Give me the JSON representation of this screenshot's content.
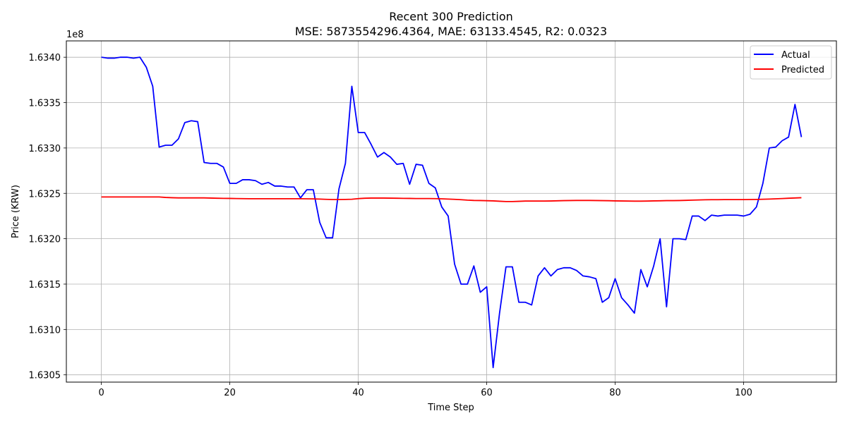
{
  "chart_data": {
    "type": "line",
    "title": "Recent 300 Prediction",
    "subtitle": "MSE: 5873554296.4364, MAE: 63133.4545, R2: 0.0323",
    "xlabel": "Time Step",
    "ylabel": "Price (KRW)",
    "y_offset_label": "1e8",
    "xlim": [
      -5.45,
      114.45
    ],
    "ylim": [
      163042000,
      163418000
    ],
    "x_ticks": [
      0,
      20,
      40,
      60,
      80,
      100
    ],
    "y_ticks": [
      1.6305,
      1.631,
      1.6315,
      1.632,
      1.6325,
      1.633,
      1.6335,
      1.634
    ],
    "y_tick_labels": [
      "1.6305",
      "1.6310",
      "1.6315",
      "1.6320",
      "1.6325",
      "1.6330",
      "1.6335",
      "1.6340"
    ],
    "grid": true,
    "legend_position": "top-right",
    "x": [
      0,
      1,
      2,
      3,
      4,
      5,
      6,
      7,
      8,
      9,
      10,
      11,
      12,
      13,
      14,
      15,
      16,
      17,
      18,
      19,
      20,
      21,
      22,
      23,
      24,
      25,
      26,
      27,
      28,
      29,
      30,
      31,
      32,
      33,
      34,
      35,
      36,
      37,
      38,
      39,
      40,
      41,
      42,
      43,
      44,
      45,
      46,
      47,
      48,
      49,
      50,
      51,
      52,
      53,
      54,
      55,
      56,
      57,
      58,
      59,
      60,
      61,
      62,
      63,
      64,
      65,
      66,
      67,
      68,
      69,
      70,
      71,
      72,
      73,
      74,
      75,
      76,
      77,
      78,
      79,
      80,
      81,
      82,
      83,
      84,
      85,
      86,
      87,
      88,
      89,
      90,
      91,
      92,
      93,
      94,
      95,
      96,
      97,
      98,
      99,
      100,
      101,
      102,
      103,
      104,
      105,
      106,
      107,
      108,
      109
    ],
    "series": [
      {
        "name": "Actual",
        "color": "#0000ff",
        "values": [
          163400000,
          163399000,
          163399000,
          163400000,
          163400000,
          163399000,
          163400000,
          163389000,
          163368000,
          163301000,
          163303000,
          163303000,
          163310000,
          163328000,
          163330000,
          163329000,
          163284000,
          163283000,
          163283000,
          163279000,
          163261000,
          163261000,
          163265000,
          163265000,
          163264000,
          163260000,
          163262000,
          163258000,
          163258000,
          163257000,
          163257000,
          163245000,
          163254000,
          163254000,
          163218000,
          163201000,
          163201000,
          163255000,
          163283000,
          163368000,
          163317000,
          163317000,
          163304000,
          163290000,
          163295000,
          163290000,
          163282000,
          163283000,
          163260000,
          163282000,
          163281000,
          163261000,
          163256000,
          163235000,
          163225000,
          163172000,
          163150000,
          163150000,
          163170000,
          163141000,
          163147000,
          163058000,
          163118000,
          163169000,
          163169000,
          163130000,
          163130000,
          163127000,
          163159000,
          163168000,
          163159000,
          163166000,
          163168000,
          163168000,
          163165000,
          163159000,
          163158000,
          163156000,
          163130000,
          163135000,
          163156000,
          163135000,
          163127000,
          163118000,
          163166000,
          163147000,
          163170000,
          163200000,
          163125000,
          163200000,
          163200000,
          163199000,
          163225000,
          163225000,
          163220000,
          163226000,
          163225000,
          163226000,
          163226000,
          163226000,
          163225000,
          163227000,
          163235000,
          163261000,
          163300000,
          163301000,
          163308000,
          163312000,
          163348000,
          163312000
        ]
      },
      {
        "name": "Predicted",
        "color": "#ff0000",
        "values": [
          163246000,
          163246000,
          163246000,
          163246000,
          163246000,
          163246000,
          163246000,
          163246000,
          163246000,
          163246000,
          163245500,
          163245200,
          163245000,
          163245000,
          163245000,
          163245000,
          163245000,
          163244800,
          163244600,
          163244500,
          163244400,
          163244300,
          163244200,
          163244100,
          163244100,
          163244100,
          163244100,
          163244100,
          163244100,
          163244100,
          163244100,
          163244100,
          163244000,
          163243900,
          163243700,
          163243400,
          163243200,
          163243200,
          163243300,
          163243500,
          163244200,
          163244600,
          163244800,
          163244800,
          163244800,
          163244700,
          163244600,
          163244500,
          163244400,
          163244300,
          163244300,
          163244300,
          163244200,
          163244000,
          163243700,
          163243400,
          163243000,
          163242500,
          163242200,
          163242100,
          163241900,
          163241700,
          163241300,
          163241000,
          163241000,
          163241200,
          163241500,
          163241500,
          163241500,
          163241500,
          163241600,
          163241800,
          163242000,
          163242100,
          163242200,
          163242200,
          163242200,
          163242100,
          163242000,
          163241900,
          163241700,
          163241600,
          163241500,
          163241400,
          163241400,
          163241500,
          163241700,
          163241800,
          163242000,
          163242000,
          163242100,
          163242300,
          163242500,
          163242700,
          163242900,
          163243000,
          163243000,
          163243100,
          163243100,
          163243100,
          163243100,
          163243200,
          163243300,
          163243500,
          163243700,
          163244000,
          163244300,
          163244600,
          163244900,
          163245200
        ]
      }
    ]
  }
}
